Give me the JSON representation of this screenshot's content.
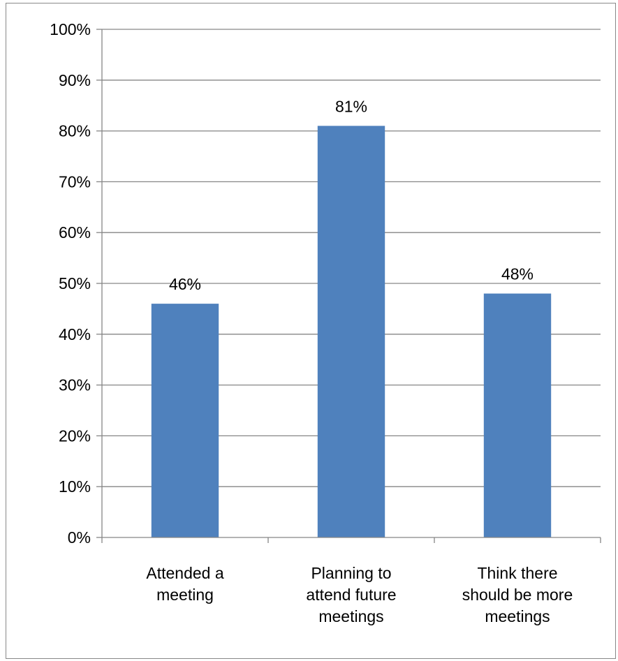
{
  "chart_data": {
    "type": "bar",
    "categories": [
      [
        "Attended a",
        "meeting"
      ],
      [
        "Planning to",
        "attend future",
        "meetings"
      ],
      [
        "Think there",
        "should be more",
        "meetings"
      ]
    ],
    "values": [
      46,
      81,
      48
    ],
    "data_labels": [
      "46%",
      "81%",
      "48%"
    ],
    "y_ticks": [
      "0%",
      "10%",
      "20%",
      "30%",
      "40%",
      "50%",
      "60%",
      "70%",
      "80%",
      "90%",
      "100%"
    ],
    "ylim": [
      0,
      100
    ],
    "grid": true,
    "legend": "none",
    "colors": {
      "bar": "#4f81bd",
      "grid": "#868686",
      "axis": "#868686"
    }
  }
}
